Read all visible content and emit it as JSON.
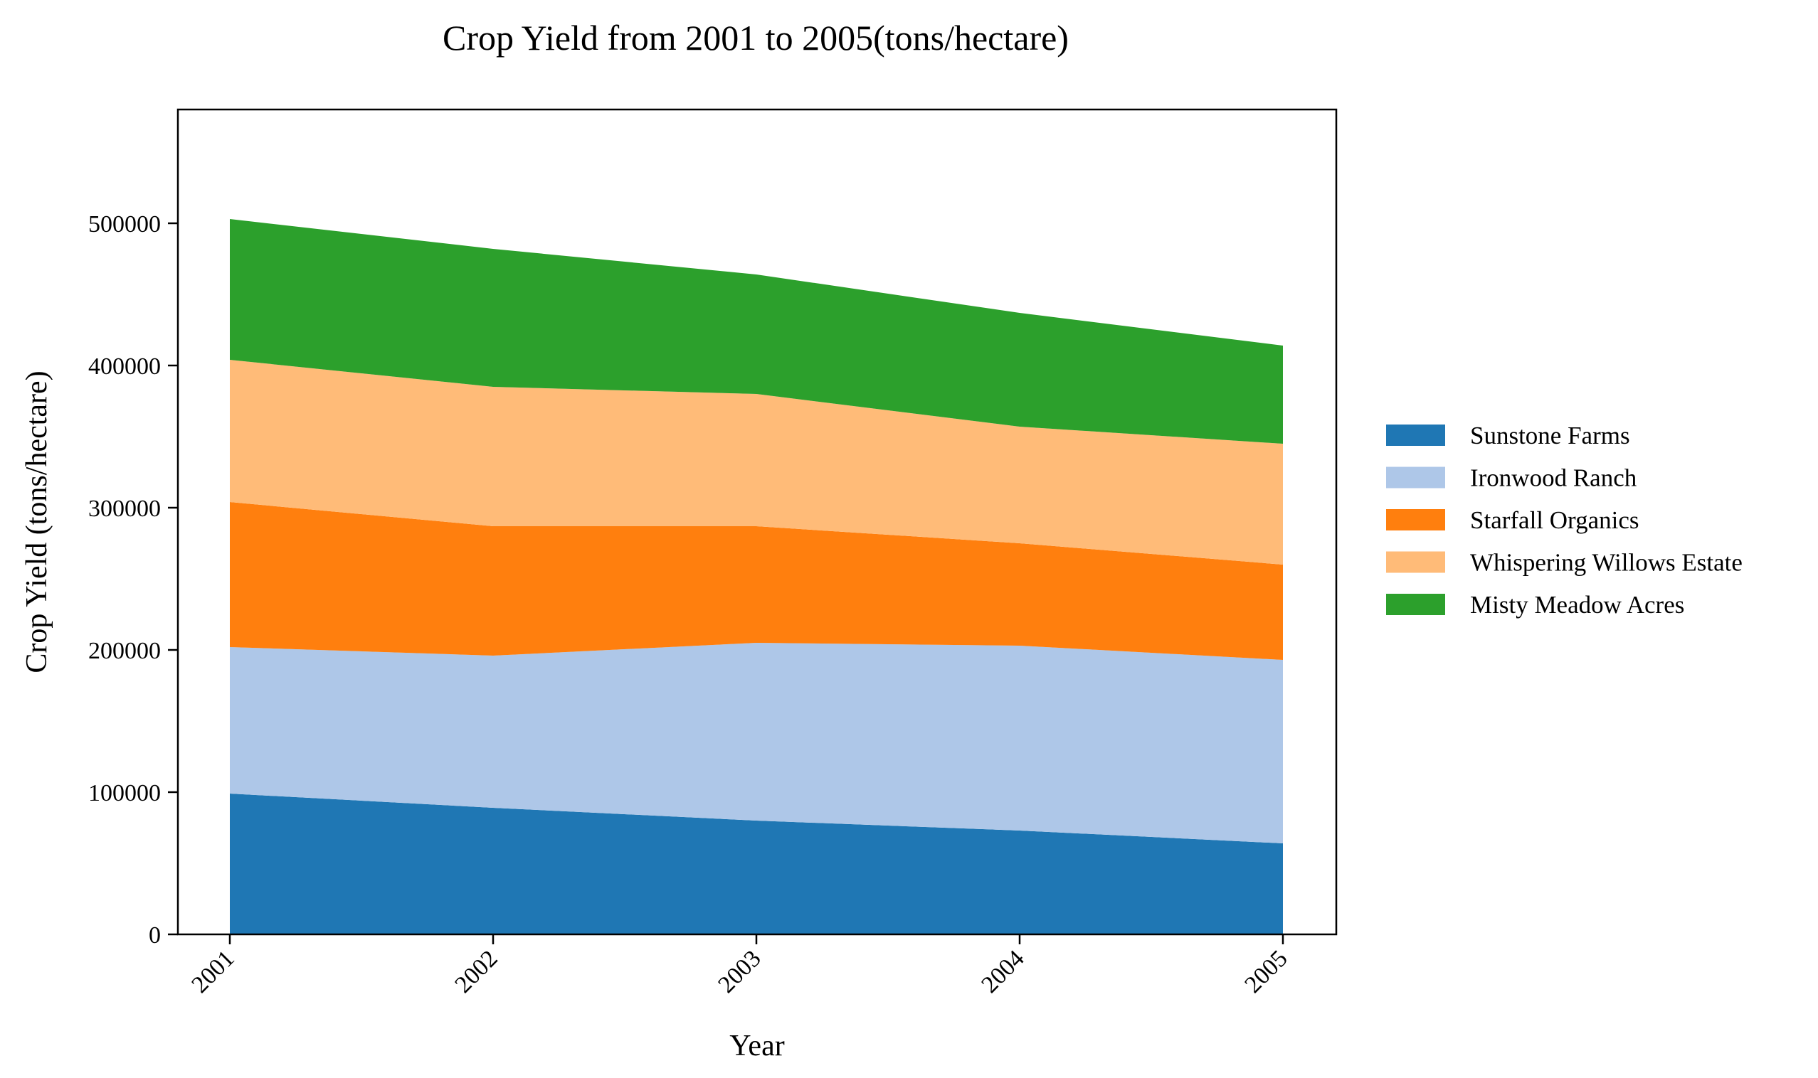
{
  "chart_data": {
    "type": "area",
    "stacked": true,
    "title": "Crop Yield from 2001 to 2005(tons/hectare)",
    "xlabel": "Year",
    "ylabel": "Crop Yield (tons/hectare)",
    "x": [
      "2001",
      "2002",
      "2003",
      "2004",
      "2005"
    ],
    "ylim": [
      0,
      580000
    ],
    "yticks": [
      "0",
      "100000",
      "200000",
      "300000",
      "400000",
      "500000"
    ],
    "yticks_values": [
      0,
      100000,
      200000,
      300000,
      400000,
      500000
    ],
    "grid": false,
    "legend_position": "right",
    "series": [
      {
        "name": "Sunstone Farms",
        "color": "#1f77b4",
        "values": [
          99000,
          89000,
          80000,
          73000,
          64000
        ]
      },
      {
        "name": "Ironwood Ranch",
        "color": "#aec7e8",
        "values": [
          103000,
          107000,
          125000,
          130000,
          129000
        ]
      },
      {
        "name": "Starfall Organics",
        "color": "#ff7f0e",
        "values": [
          102000,
          91000,
          82000,
          72000,
          67000
        ]
      },
      {
        "name": "Whispering Willows Estate",
        "color": "#ffbb78",
        "values": [
          100000,
          98000,
          93000,
          82000,
          85000
        ]
      },
      {
        "name": "Misty Meadow Acres",
        "color": "#2ca02c",
        "values": [
          99000,
          97000,
          84000,
          80000,
          69000
        ]
      }
    ]
  }
}
